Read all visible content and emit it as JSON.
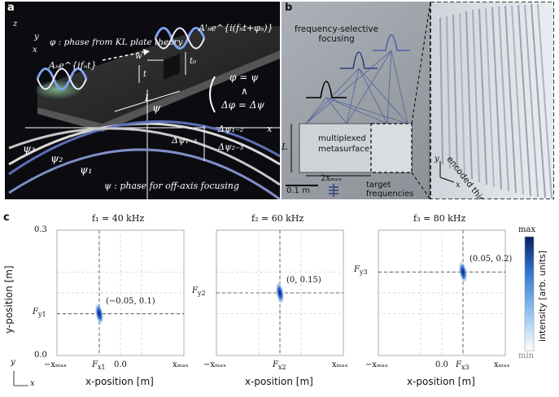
{
  "panel_a": {
    "label": "a",
    "axis_z": "z",
    "axis_y": "y",
    "axis_x": "x",
    "phi_note": "φ : phase from KL plate theory",
    "wave_in": "Aₙe^{ifₙt}",
    "wave_out": "A'ₙe^{i(fₙt+φₙ)}",
    "w": "w",
    "t0": "t₀",
    "t": "t",
    "L": "L",
    "eq1": "φ = ψ",
    "eq2": "∧",
    "eq3": "Δφ = Δψ",
    "psi_axis": "ψ",
    "x_axis": "x",
    "psi1": "ψ₁",
    "psi2": "ψ₂",
    "psi3": "ψ₃",
    "dpsi13": "Δψ₁₋₃",
    "dpsi12": "Δψ₁₋₂",
    "dpsi23": "Δψ₂₋₃",
    "psi_note": "ψ : phase for off-axis focusing",
    "colors": {
      "psi1": "#d9d9d9",
      "psi2": "#5a6fb5",
      "psi3": "#c8c8c8"
    }
  },
  "panel_b": {
    "label": "b",
    "focusing": "frequency-selective\nfocusing",
    "meta1": "multiplexed",
    "meta2": "metasurface",
    "L": "L",
    "xmax": "2xₘₐₓ",
    "scale": "0.1 m",
    "target1": "target",
    "target2": "frequencies",
    "encoded": "encoded thickness",
    "axis_y": "y",
    "axis_x": "x"
  },
  "panel_c": {
    "label": "c",
    "y_axis_title": "y-position [m]",
    "x_axis_title": "x-position [m]",
    "colorbar_title": "intensity [arb. units]",
    "colorbar_max": "max",
    "colorbar_min": "min",
    "corner_y": "y",
    "corner_x": "x",
    "y_top": "0.3",
    "y_bottom": "0.0",
    "x_left": "−xₘₐₓ",
    "x_right": "xₘₐₓ",
    "x_zero": "0.0"
  },
  "chart_data": [
    {
      "type": "heatmap",
      "title": "f₁ = 40 kHz",
      "focus": {
        "x": -0.05,
        "y": 0.1
      },
      "annotation": "(−0.05, 0.1)",
      "fx_label": "Fx1",
      "fy_label": "Fy1",
      "ylim": [
        0.0,
        0.3
      ]
    },
    {
      "type": "heatmap",
      "title": "f₂ = 60 kHz",
      "focus": {
        "x": 0.0,
        "y": 0.15
      },
      "annotation": "(0, 0.15)",
      "fx_label": "Fx2",
      "fy_label": "Fy2",
      "ylim": [
        0.0,
        0.3
      ]
    },
    {
      "type": "heatmap",
      "title": "f₃ = 80 kHz",
      "focus": {
        "x": 0.05,
        "y": 0.2
      },
      "annotation": "(0.05, 0.2)",
      "fx_label": "Fx3",
      "fy_label": "Fy3",
      "ylim": [
        0.0,
        0.3
      ]
    }
  ]
}
